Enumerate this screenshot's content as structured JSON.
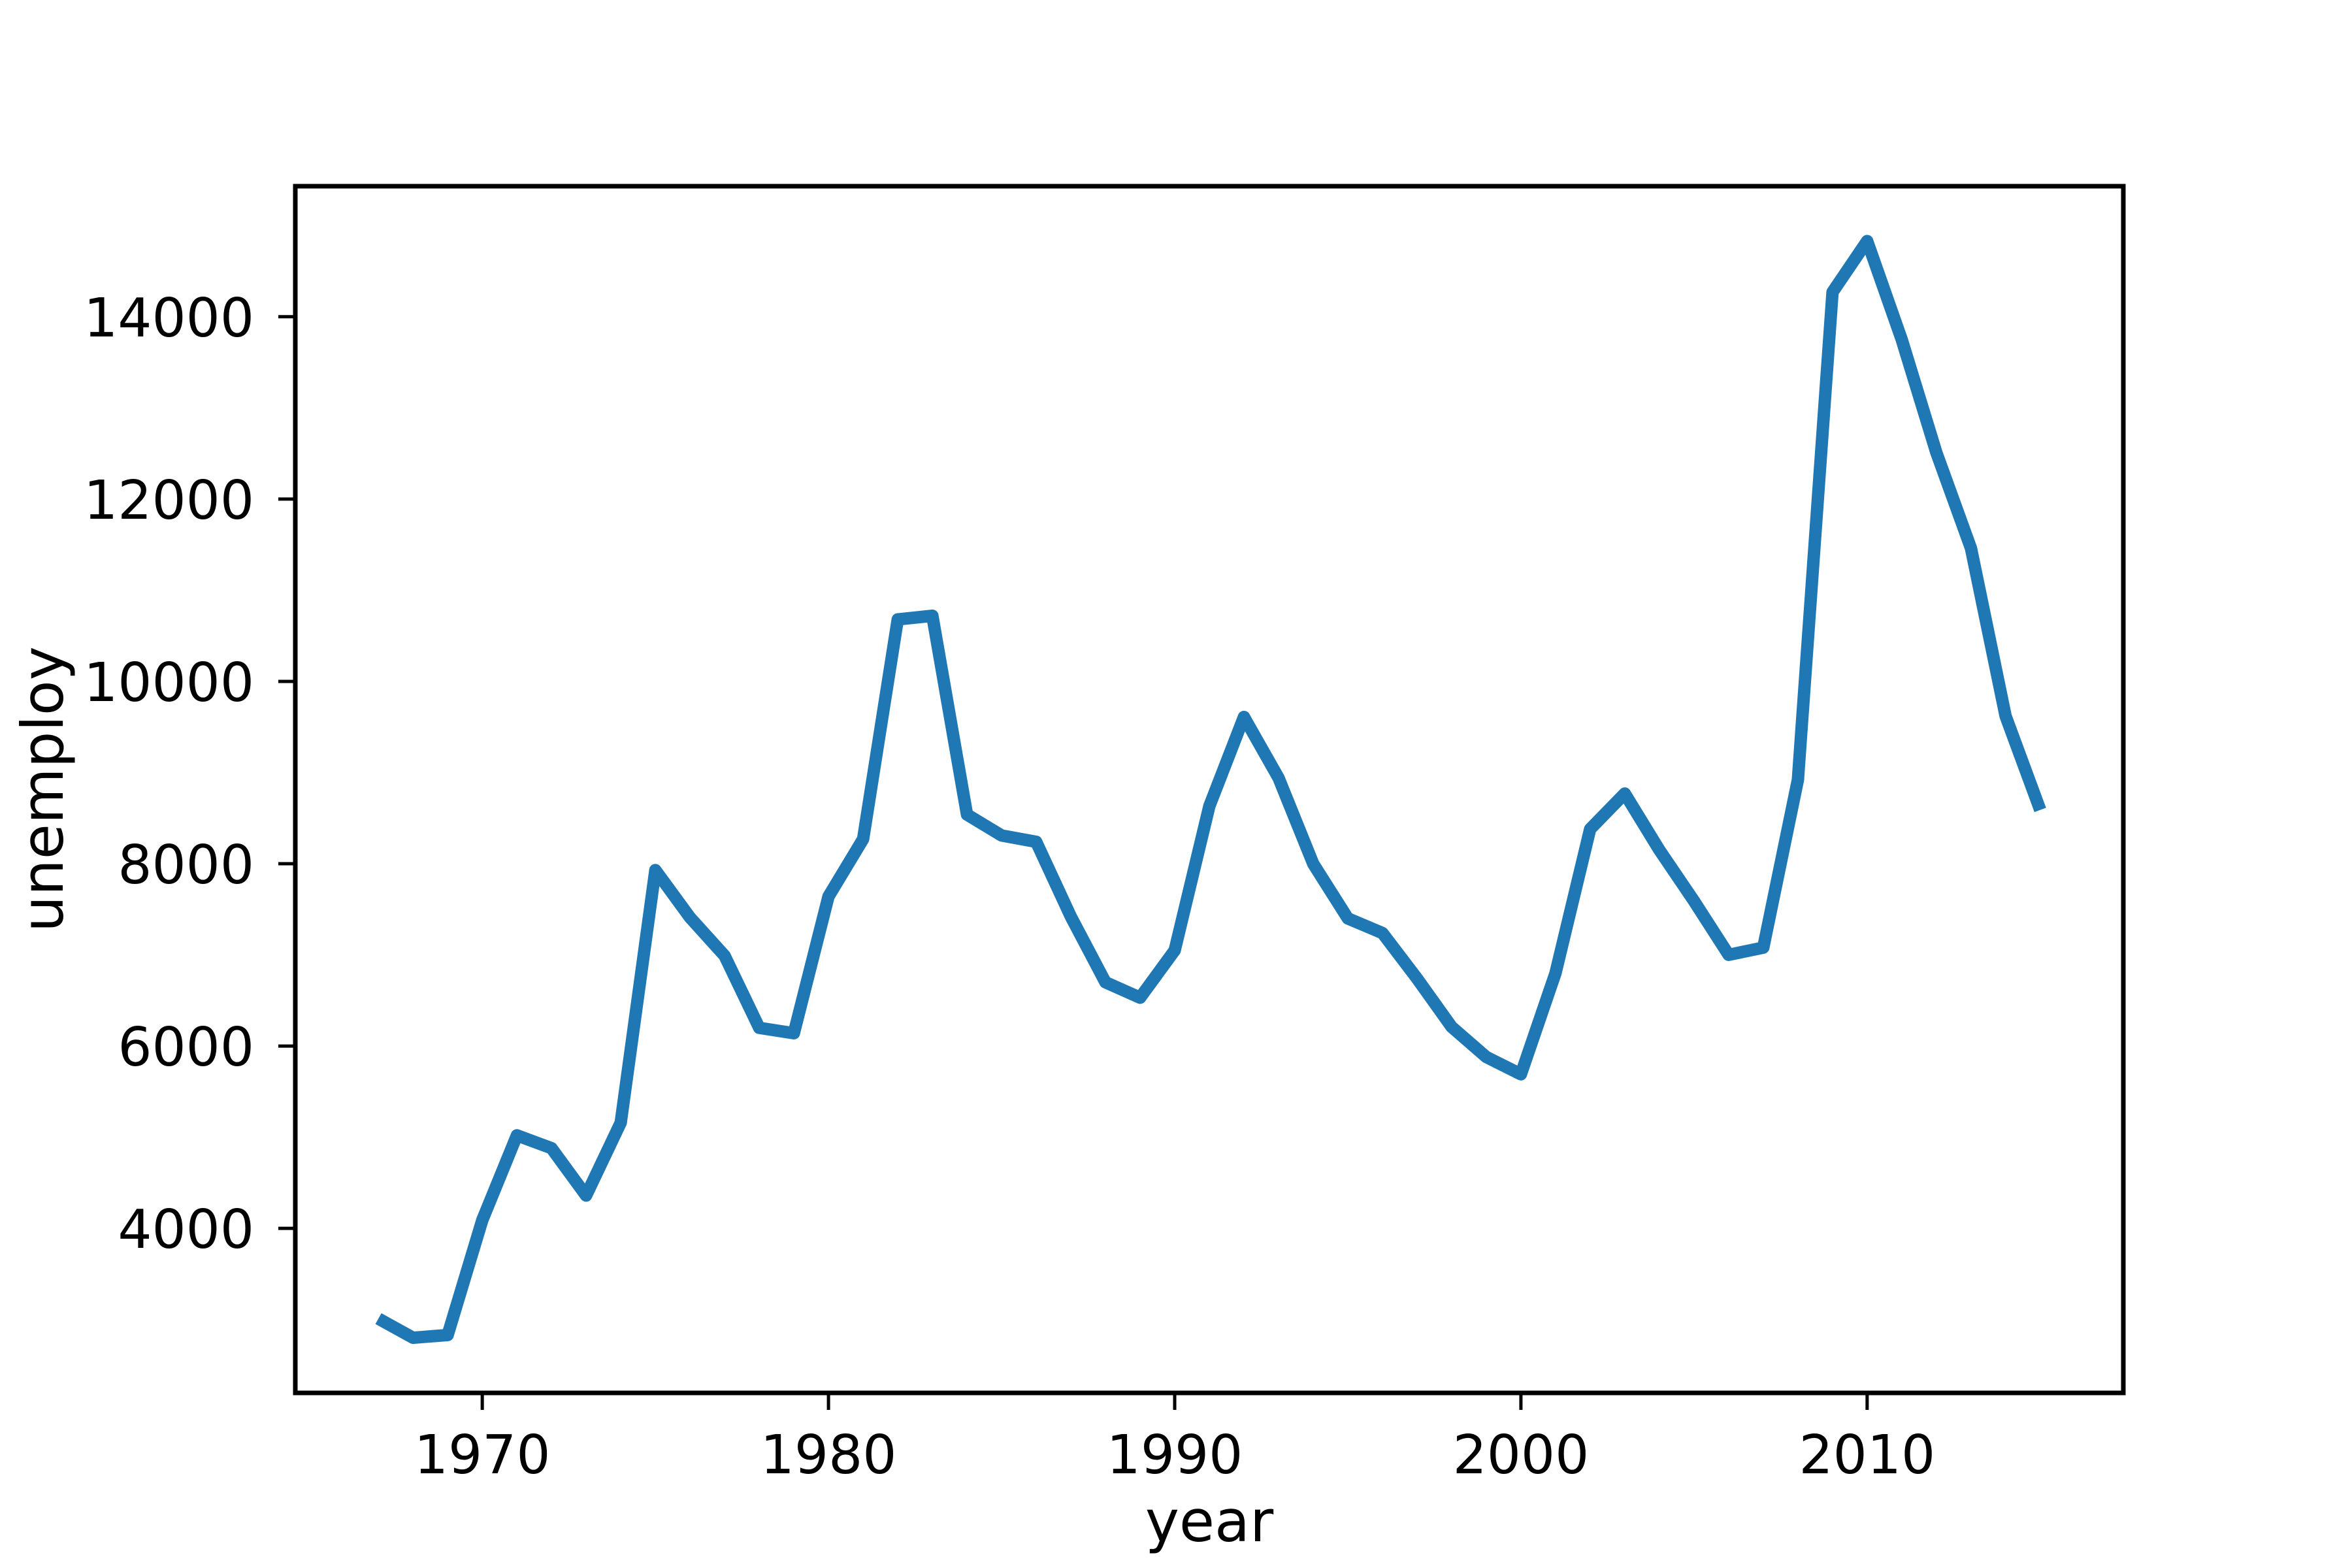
{
  "chart_data": {
    "type": "line",
    "title": "",
    "xlabel": "year",
    "ylabel": "unemploy",
    "grid": false,
    "legend": "none",
    "background_color": "#ffffff",
    "spine_color": "#000000",
    "tick_color": "#000000",
    "text_color": "#000000",
    "xlim": [
      1964.6,
      2017.4
    ],
    "ylim": [
      2195,
      15432
    ],
    "xticks": [
      1970,
      1980,
      1990,
      2000,
      2010
    ],
    "yticks": [
      4000,
      6000,
      8000,
      10000,
      12000,
      14000
    ],
    "x": [
      1967,
      1968,
      1969,
      1970,
      1971,
      1972,
      1973,
      1974,
      1975,
      1976,
      1977,
      1978,
      1979,
      1980,
      1981,
      1982,
      1983,
      1984,
      1985,
      1986,
      1987,
      1988,
      1989,
      1990,
      1991,
      1992,
      1993,
      1994,
      1995,
      1996,
      1997,
      1998,
      1999,
      2000,
      2001,
      2002,
      2003,
      2004,
      2005,
      2006,
      2007,
      2008,
      2009,
      2010,
      2011,
      2012,
      2013,
      2014,
      2015
    ],
    "series": [
      {
        "name": "unemploy",
        "color": "#1f77b4",
        "values": [
          3010,
          2800,
          2830,
          4090,
          5020,
          4880,
          4360,
          5160,
          7930,
          7410,
          6990,
          6200,
          6140,
          7640,
          8270,
          10680,
          10720,
          8540,
          8310,
          8240,
          7420,
          6700,
          6530,
          7050,
          8630,
          9610,
          8940,
          8000,
          7400,
          7240,
          6740,
          6210,
          5880,
          5690,
          6800,
          8380,
          8770,
          8150,
          7590,
          7000,
          7080,
          8920,
          14270,
          14830,
          13750,
          12510,
          11460,
          9620,
          8590
        ]
      }
    ]
  }
}
